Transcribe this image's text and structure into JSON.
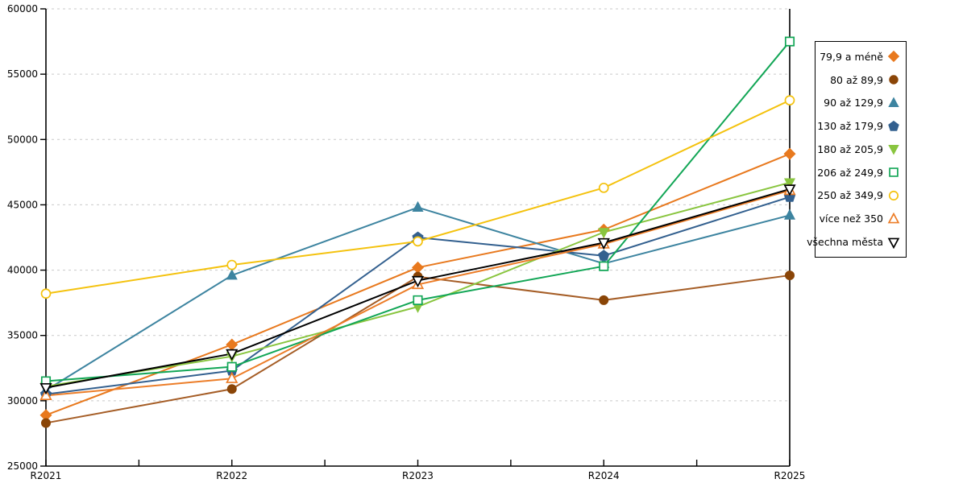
{
  "chart": {
    "background": "#ffffff",
    "grid_color": "#c9c9c9",
    "axis_color": "#000000",
    "tick_label_color": "#000000"
  },
  "chart_data": {
    "type": "line",
    "title": "",
    "xlabel": "",
    "ylabel": "",
    "categories": [
      "R2021",
      "R2022",
      "R2023",
      "R2024",
      "R2025"
    ],
    "ylim": [
      25000,
      60000
    ],
    "ytick_step": 5000,
    "yticks": [
      25000,
      30000,
      35000,
      40000,
      45000,
      50000,
      55000,
      60000
    ],
    "grid": "horizontal-dashed",
    "legend_position": "right",
    "series": [
      {
        "name": "79,9 a méně",
        "marker": "diamond",
        "fill": "solid",
        "color": "#E8791E",
        "values": [
          28900,
          34300,
          40200,
          43100,
          48900
        ]
      },
      {
        "name": "80 až 89,9",
        "marker": "circle",
        "fill": "solid",
        "color": "#8A4507",
        "line_color": "#A55D26",
        "values": [
          28300,
          30900,
          39500,
          37700,
          39600
        ]
      },
      {
        "name": "90 až 129,9",
        "marker": "triangle-up",
        "fill": "solid",
        "color": "#3D84A0",
        "values": [
          30800,
          39600,
          44800,
          40500,
          44200
        ]
      },
      {
        "name": "130 až 179,9",
        "marker": "pentagon",
        "fill": "solid",
        "color": "#33608F",
        "values": [
          30500,
          32300,
          42500,
          41100,
          45600
        ]
      },
      {
        "name": "180 až 205,9",
        "marker": "triangle-down",
        "fill": "solid",
        "color": "#89C53F",
        "values": [
          31100,
          33400,
          37200,
          42900,
          46700
        ]
      },
      {
        "name": "206 až 249,9",
        "marker": "square",
        "fill": "hollow",
        "color": "#12A656",
        "values": [
          31500,
          32600,
          37700,
          40300,
          57500
        ]
      },
      {
        "name": "250 až 349,9",
        "marker": "circle",
        "fill": "hollow",
        "color": "#F4C20E",
        "values": [
          38200,
          40400,
          42200,
          46300,
          53000
        ]
      },
      {
        "name": "více než 350",
        "marker": "triangle-up",
        "fill": "hollow",
        "color": "#EC7D28",
        "values": [
          30400,
          31700,
          38900,
          42000,
          46100
        ]
      },
      {
        "name": "všechna města",
        "marker": "triangle-down",
        "fill": "hollow",
        "color": "#000000",
        "values": [
          31000,
          33600,
          39200,
          42100,
          46200
        ]
      }
    ]
  }
}
